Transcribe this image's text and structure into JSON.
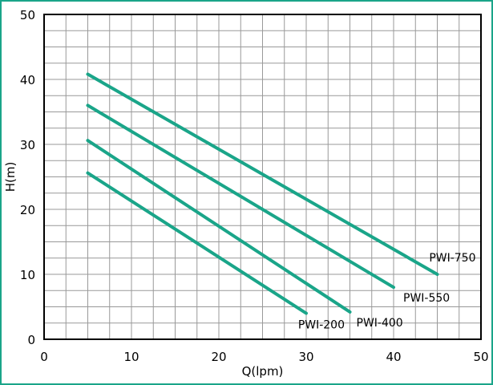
{
  "chart_data": {
    "type": "line",
    "title": "",
    "xlabel": "Q(lpm)",
    "ylabel": "H(m)",
    "xlim": [
      0,
      50
    ],
    "ylim": [
      0,
      50
    ],
    "x_ticks": [
      "0",
      "10",
      "20",
      "30",
      "40",
      "50"
    ],
    "y_ticks": [
      "0",
      "10",
      "20",
      "30",
      "40",
      "50"
    ],
    "grid": true,
    "minor_grid_step": 2.5,
    "line_color": "#1aa589",
    "frame_color": "#1aa589",
    "series": [
      {
        "name": "PWI-750",
        "x": [
          5,
          45
        ],
        "y": [
          40.8,
          10.0
        ]
      },
      {
        "name": "PWI-550",
        "x": [
          5,
          40
        ],
        "y": [
          36.0,
          8.0
        ]
      },
      {
        "name": "PWI-400",
        "x": [
          5,
          35
        ],
        "y": [
          30.6,
          4.2
        ]
      },
      {
        "name": "PWI-200",
        "x": [
          5,
          30
        ],
        "y": [
          25.6,
          4.0
        ]
      }
    ]
  }
}
